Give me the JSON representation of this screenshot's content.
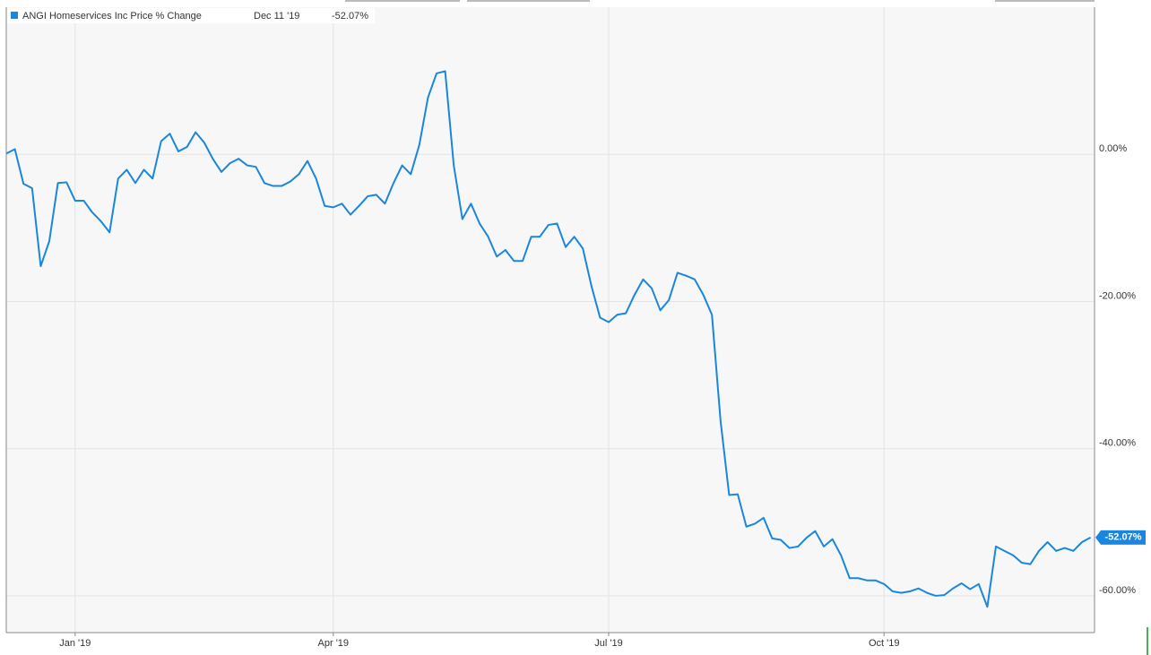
{
  "chart_data": {
    "type": "line",
    "categories": [
      null,
      null,
      null,
      null,
      null,
      null,
      null,
      null,
      "Jan '19",
      null,
      null,
      null,
      null,
      null,
      null,
      null,
      null,
      null,
      null,
      null,
      null,
      null,
      null,
      null,
      null,
      null,
      null,
      null,
      null,
      null,
      null,
      null,
      null,
      null,
      null,
      null,
      null,
      null,
      "Apr '19",
      null,
      null,
      null,
      null,
      null,
      null,
      null,
      null,
      null,
      null,
      null,
      null,
      null,
      null,
      null,
      null,
      null,
      null,
      null,
      null,
      null,
      null,
      null,
      null,
      null,
      null,
      null,
      null,
      null,
      null,
      null,
      "Jul '19",
      null,
      null,
      null,
      null,
      null,
      null,
      null,
      null,
      null,
      null,
      null,
      null,
      null,
      null,
      null,
      null,
      null,
      null,
      null,
      null,
      null,
      null,
      null,
      null,
      null,
      null,
      null,
      null,
      null,
      null,
      null,
      "Oct '19",
      null,
      null,
      null,
      null,
      null,
      null,
      null,
      null,
      null,
      null,
      null,
      null,
      null,
      null,
      null,
      null,
      null,
      null,
      null,
      null,
      null,
      null,
      null,
      null
    ],
    "series": [
      {
        "name": "ANGI Homeservices Inc Price % Change",
        "color": "#1a86dd",
        "values": [
          0.1,
          0.7,
          -4.0,
          -4.6,
          -15.2,
          -11.8,
          -3.9,
          -3.8,
          -6.3,
          -6.3,
          -7.9,
          -9.1,
          -10.6,
          -3.3,
          -2.1,
          -3.9,
          -2.1,
          -3.3,
          1.8,
          2.8,
          0.4,
          1.0,
          3.0,
          1.6,
          -0.6,
          -2.4,
          -1.2,
          -0.6,
          -1.5,
          -1.7,
          -3.9,
          -4.3,
          -4.3,
          -3.7,
          -2.7,
          -0.9,
          -3.3,
          -7.0,
          -7.2,
          -6.7,
          -8.2,
          -7.0,
          -5.7,
          -5.5,
          -6.7,
          -3.9,
          -1.5,
          -2.7,
          1.3,
          7.7,
          11.0,
          11.3,
          -1.5,
          -8.8,
          -6.7,
          -9.4,
          -11.2,
          -13.9,
          -13.0,
          -14.5,
          -14.5,
          -11.2,
          -11.2,
          -9.6,
          -9.4,
          -12.6,
          -11.2,
          -12.8,
          -17.9,
          -22.2,
          -22.8,
          -21.8,
          -21.6,
          -19.1,
          -17.0,
          -18.2,
          -21.2,
          -19.8,
          -16.1,
          -16.5,
          -17.0,
          -19.1,
          -21.8,
          -36.2,
          -46.3,
          -46.2,
          -50.6,
          -50.2,
          -49.4,
          -52.2,
          -52.4,
          -53.5,
          -53.3,
          -52.1,
          -51.2,
          -53.3,
          -52.3,
          -54.5,
          -57.6,
          -57.6,
          -57.9,
          -57.9,
          -58.4,
          -59.4,
          -59.6,
          -59.4,
          -59.0,
          -59.6,
          -60.0,
          -59.9,
          -59.0,
          -58.3,
          -59.1,
          -58.4,
          -61.5,
          -53.3,
          -53.9,
          -54.5,
          -55.5,
          -55.7,
          -53.9,
          -52.7,
          -53.9,
          -53.5,
          -53.9,
          -52.7,
          -52.07
        ]
      }
    ],
    "legend_date": "Dec 11 '19",
    "last_value_label": "-52.07%",
    "ylim": [
      -65,
      20
    ],
    "yticks": [
      {
        "value": 0,
        "label": "0.00%"
      },
      {
        "value": -20,
        "label": "-20.00%"
      },
      {
        "value": -40,
        "label": "-40.00%"
      },
      {
        "value": -60,
        "label": "-60.00%"
      }
    ],
    "grid": true
  }
}
